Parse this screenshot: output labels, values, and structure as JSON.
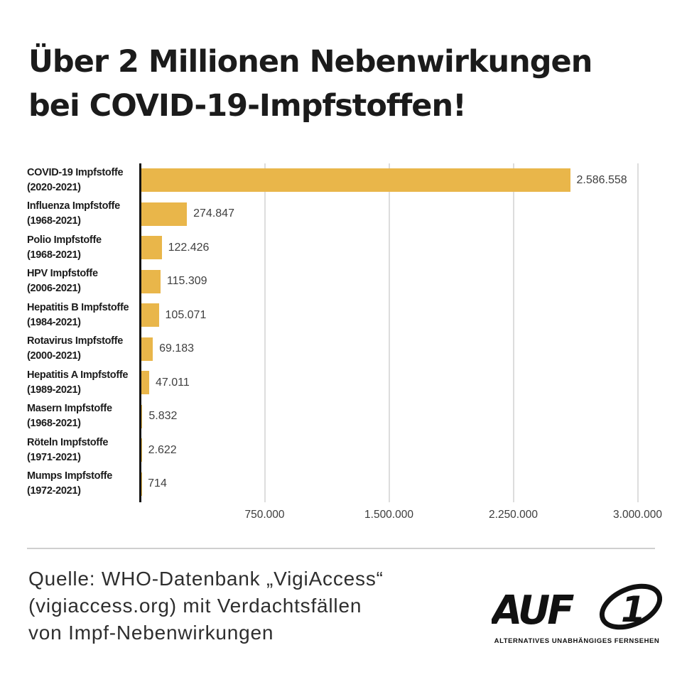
{
  "title": {
    "line1": "Über 2 Millionen Nebenwirkungen",
    "line2": "bei COVID-19-Impfstoffen!"
  },
  "chart_data": {
    "type": "bar",
    "orientation": "horizontal",
    "title": "Über 2 Millionen Nebenwirkungen bei COVID-19-Impfstoffen!",
    "grid": true,
    "xlim": [
      0,
      3000000
    ],
    "bar_color": "#E9B64A",
    "categories": [
      {
        "name": "COVID-19 Impfstoffe",
        "years": "(2020-2021)"
      },
      {
        "name": "Influenza Impfstoffe",
        "years": "(1968-2021)"
      },
      {
        "name": "Polio Impfstoffe",
        "years": "(1968-2021)"
      },
      {
        "name": "HPV Impfstoffe",
        "years": "(2006-2021)"
      },
      {
        "name": "Hepatitis B Impfstoffe",
        "years": "(1984-2021)"
      },
      {
        "name": "Rotavirus Impfstoffe",
        "years": "(2000-2021)"
      },
      {
        "name": "Hepatitis A Impfstoffe",
        "years": "(1989-2021)"
      },
      {
        "name": "Masern Impfstoffe",
        "years": "(1968-2021)"
      },
      {
        "name": "Röteln Impfstoffe",
        "years": "(1971-2021)"
      },
      {
        "name": "Mumps Impfstoffe",
        "years": "(1972-2021)"
      }
    ],
    "values": [
      2586558,
      274847,
      122426,
      115309,
      105071,
      69183,
      47011,
      5832,
      2622,
      714
    ],
    "value_labels": [
      "2.586.558",
      "274.847",
      "122.426",
      "115.309",
      "105.071",
      "69.183",
      "47.011",
      "5.832",
      "2.622",
      "714"
    ],
    "x_ticks": [
      "750.000",
      "1.500.000",
      "2.250.000",
      "3.000.000"
    ],
    "x_tick_values": [
      750000,
      1500000,
      2250000,
      3000000
    ]
  },
  "footer": {
    "source_line1": "Quelle: WHO-Datenbank „VigiAccess“",
    "source_line2": "(vigiaccess.org) mit Verdachtsfällen",
    "source_line3": "von Impf-Nebenwirkungen"
  },
  "logo": {
    "word": "AUF",
    "number": "1",
    "subtitle": "ALTERNATIVES UNABHÄNGIGES FERNSEHEN"
  }
}
